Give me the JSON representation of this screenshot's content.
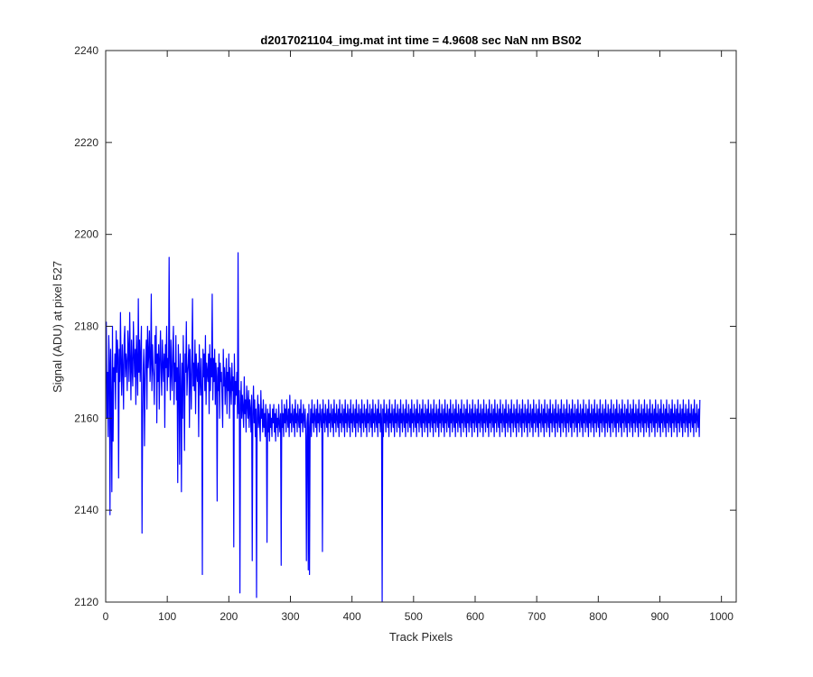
{
  "chart_data": {
    "type": "line",
    "title": "d2017021104_img.mat int time = 4.9608 sec  NaN nm BS02",
    "xlabel": "Track Pixels",
    "ylabel": "Signal (ADU) at pixel 527",
    "xlim": [
      0,
      1024
    ],
    "ylim": [
      2120,
      2240
    ],
    "xticks": [
      0,
      100,
      200,
      300,
      400,
      500,
      600,
      700,
      800,
      900,
      1000
    ],
    "yticks": [
      2120,
      2140,
      2160,
      2180,
      2200,
      2220,
      2240
    ],
    "grid": false,
    "legend": "none",
    "series": [
      {
        "color": "#0000ff",
        "x_start": 1,
        "x_step": 1,
        "values": [
          2181,
          2160,
          2170,
          2156,
          2178,
          2172,
          2139,
          2175,
          2164,
          2144,
          2180,
          2155,
          2171,
          2168,
          2174,
          2162,
          2179,
          2170,
          2177,
          2173,
          2147,
          2175,
          2168,
          2183,
          2172,
          2165,
          2176,
          2171,
          2162,
          2177,
          2180,
          2169,
          2174,
          2172,
          2166,
          2179,
          2175,
          2168,
          2183,
          2173,
          2164,
          2177,
          2171,
          2167,
          2181,
          2174,
          2169,
          2175,
          2163,
          2178,
          2172,
          2165,
          2186,
          2170,
          2177,
          2168,
          2174,
          2180,
          2135,
          2160,
          2171,
          2175,
          2154,
          2168,
          2173,
          2177,
          2162,
          2180,
          2171,
          2174,
          2179,
          2168,
          2172,
          2187,
          2166,
          2176,
          2171,
          2169,
          2163,
          2178,
          2172,
          2180,
          2159,
          2174,
          2168,
          2176,
          2162,
          2173,
          2179,
          2170,
          2165,
          2177,
          2172,
          2168,
          2174,
          2158,
          2176,
          2171,
          2180,
          2166,
          2173,
          2169,
          2195,
          2172,
          2164,
          2177,
          2170,
          2166,
          2175,
          2180,
          2163,
          2172,
          2168,
          2178,
          2164,
          2171,
          2146,
          2176,
          2169,
          2150,
          2174,
          2167,
          2144,
          2172,
          2160,
          2178,
          2168,
          2153,
          2174,
          2170,
          2181,
          2165,
          2170,
          2172,
          2176,
          2158,
          2175,
          2169,
          2162,
          2173,
          2186,
          2167,
          2172,
          2166,
          2177,
          2161,
          2174,
          2170,
          2168,
          2172,
          2156,
          2176,
          2169,
          2165,
          2173,
          2167,
          2126,
          2175,
          2169,
          2174,
          2166,
          2178,
          2163,
          2172,
          2170,
          2168,
          2174,
          2161,
          2176,
          2166,
          2173,
          2169,
          2187,
          2164,
          2173,
          2168,
          2175,
          2163,
          2172,
          2169,
          2142,
          2171,
          2166,
          2174,
          2160,
          2172,
          2168,
          2170,
          2164,
          2158,
          2175,
          2167,
          2171,
          2163,
          2168,
          2173,
          2161,
          2170,
          2166,
          2174,
          2160,
          2171,
          2167,
          2163,
          2172,
          2166,
          2169,
          2132,
          2174,
          2163,
          2168,
          2165,
          2170,
          2160,
          2196,
          2161,
          2166,
          2122,
          2163,
          2168,
          2160,
          2165,
          2162,
          2158,
          2169,
          2161,
          2164,
          2157,
          2167,
          2163,
          2160,
          2166,
          2158,
          2164,
          2162,
          2157,
          2165,
          2129,
          2161,
          2167,
          2159,
          2164,
          2156,
          2162,
          2121,
          2160,
          2165,
          2158,
          2163,
          2159,
          2155,
          2166,
          2160,
          2162,
          2157,
          2164,
          2158,
          2161,
          2156,
          2163,
          2159,
          2133,
          2162,
          2157,
          2161,
          2155,
          2163,
          2158,
          2160,
          2156,
          2162,
          2159,
          2163,
          2157,
          2161,
          2155,
          2162,
          2158,
          2160,
          2156,
          2163,
          2159,
          2157,
          2161,
          2128,
          2164,
          2158,
          2161,
          2156,
          2163,
          2159,
          2162,
          2157,
          2164,
          2160,
          2158,
          2162,
          2156,
          2165,
          2159,
          2161,
          2157,
          2163,
          2160,
          2158,
          2162,
          2156,
          2164,
          2159,
          2161,
          2157,
          2163,
          2160,
          2158,
          2162,
          2156,
          2164,
          2159,
          2161,
          2157,
          2163,
          2160,
          2158,
          2162,
          2156,
          2129,
          2159,
          2161,
          2127,
          2163,
          2126,
          2158,
          2162,
          2156,
          2164,
          2159,
          2161,
          2157,
          2163,
          2160,
          2158,
          2162,
          2156,
          2164,
          2159,
          2161,
          2157,
          2163,
          2160,
          2158,
          2162,
          2131,
          2164,
          2159,
          2161,
          2157,
          2163,
          2160,
          2158,
          2162,
          2156,
          2164,
          2159,
          2161,
          2157,
          2163,
          2160,
          2158,
          2162,
          2156,
          2164,
          2159,
          2161,
          2157,
          2163,
          2160,
          2158,
          2162,
          2156,
          2164,
          2159,
          2161,
          2157,
          2163,
          2160,
          2158,
          2162,
          2156,
          2164,
          2159,
          2161,
          2157,
          2163,
          2160,
          2158,
          2162,
          2156,
          2164,
          2159,
          2161,
          2157,
          2163,
          2160,
          2158,
          2162,
          2156,
          2164,
          2159,
          2161,
          2157,
          2163,
          2160,
          2158,
          2162,
          2156,
          2164,
          2159,
          2161,
          2157,
          2163,
          2160,
          2158,
          2162,
          2156,
          2164,
          2159,
          2161,
          2157,
          2163,
          2160,
          2158,
          2162,
          2156,
          2164,
          2159,
          2161,
          2157,
          2163,
          2160,
          2158,
          2162,
          2156,
          2164,
          2159,
          2161,
          2157,
          2163,
          2160,
          2120,
          2162,
          2156,
          2164,
          2159,
          2161,
          2157,
          2163,
          2160,
          2158,
          2162,
          2156,
          2164,
          2159,
          2161,
          2157,
          2163,
          2160,
          2158,
          2162,
          2156,
          2164,
          2159,
          2161,
          2157,
          2163,
          2160,
          2158,
          2162,
          2156,
          2164,
          2159,
          2161,
          2157,
          2163,
          2160,
          2158,
          2162,
          2156,
          2164,
          2159,
          2161,
          2157,
          2163,
          2160,
          2158,
          2162,
          2156,
          2164,
          2159,
          2161,
          2157,
          2163,
          2160,
          2158,
          2162,
          2156,
          2164,
          2159,
          2161,
          2157,
          2163,
          2160,
          2158,
          2162,
          2156,
          2164,
          2159,
          2161,
          2157,
          2163,
          2160,
          2158,
          2162,
          2156,
          2164,
          2159,
          2161,
          2157,
          2163,
          2160,
          2158,
          2162,
          2156,
          2164,
          2159,
          2161,
          2157,
          2163,
          2160,
          2158,
          2162,
          2156,
          2164,
          2159,
          2161,
          2157,
          2163,
          2160,
          2158,
          2162,
          2156,
          2164,
          2159,
          2161,
          2157,
          2163,
          2160,
          2158,
          2162,
          2156,
          2164,
          2159,
          2161,
          2157,
          2163,
          2160,
          2158,
          2162,
          2156,
          2164,
          2159,
          2161,
          2157,
          2163,
          2160,
          2158,
          2162,
          2156,
          2164,
          2159,
          2161,
          2157,
          2163,
          2160,
          2158,
          2162,
          2156,
          2164,
          2159,
          2161,
          2157,
          2163,
          2160,
          2158,
          2162,
          2156,
          2164,
          2159,
          2161,
          2157,
          2163,
          2160,
          2158,
          2162,
          2156,
          2164,
          2159,
          2161,
          2157,
          2163,
          2160,
          2158,
          2162,
          2156,
          2164,
          2159,
          2161,
          2157,
          2163,
          2160,
          2158,
          2162,
          2156,
          2164,
          2159,
          2161,
          2157,
          2163,
          2160,
          2158,
          2162,
          2156,
          2164,
          2159,
          2161,
          2157,
          2163,
          2160,
          2158,
          2162,
          2156,
          2164,
          2159,
          2161,
          2157,
          2163,
          2160,
          2158,
          2162,
          2156,
          2164,
          2159,
          2161,
          2157,
          2163,
          2160,
          2158,
          2162,
          2156,
          2164,
          2159,
          2161,
          2157,
          2163,
          2160,
          2158,
          2162,
          2156,
          2164,
          2159,
          2161,
          2157,
          2163,
          2160,
          2158,
          2162,
          2156,
          2164,
          2159,
          2161,
          2157,
          2163,
          2160,
          2158,
          2162,
          2156,
          2164,
          2159,
          2161,
          2157,
          2163,
          2160,
          2158,
          2162,
          2156,
          2164,
          2159,
          2161,
          2157,
          2163,
          2160,
          2158,
          2162,
          2156,
          2164,
          2159,
          2161,
          2157,
          2163,
          2160,
          2158,
          2162,
          2156,
          2164,
          2159,
          2161,
          2157,
          2163,
          2160,
          2158,
          2162,
          2156,
          2164,
          2159,
          2161,
          2157,
          2163,
          2160,
          2158,
          2162,
          2156,
          2164,
          2159,
          2161,
          2157,
          2163,
          2160,
          2158,
          2162,
          2156,
          2164,
          2159,
          2161,
          2157,
          2163,
          2160,
          2158,
          2162,
          2156,
          2164,
          2159,
          2161,
          2157,
          2163,
          2160,
          2158,
          2162,
          2156,
          2164,
          2159,
          2161,
          2157,
          2163,
          2160,
          2158,
          2162,
          2156,
          2164,
          2159,
          2161,
          2157,
          2163,
          2160,
          2158,
          2162,
          2156,
          2164,
          2159,
          2161,
          2157,
          2163,
          2160,
          2158,
          2162,
          2156,
          2164,
          2159,
          2161,
          2157,
          2163,
          2160,
          2158,
          2162,
          2156,
          2164,
          2159,
          2161,
          2157,
          2163,
          2160,
          2158,
          2162,
          2156,
          2164,
          2159,
          2161,
          2157,
          2163,
          2160,
          2158,
          2162,
          2156,
          2164,
          2159,
          2161,
          2157,
          2163,
          2160,
          2158,
          2162,
          2156,
          2164,
          2159,
          2161,
          2157,
          2163,
          2160,
          2158,
          2162,
          2156,
          2164,
          2159,
          2161,
          2157,
          2163,
          2160,
          2158,
          2162,
          2156,
          2164,
          2159,
          2161,
          2157,
          2163,
          2160,
          2158,
          2162,
          2156,
          2164,
          2159,
          2161,
          2157,
          2163,
          2160,
          2158,
          2162,
          2156,
          2164,
          2159,
          2161,
          2157,
          2163,
          2160,
          2158,
          2162,
          2156,
          2164,
          2159,
          2161,
          2157,
          2163,
          2160,
          2158,
          2162,
          2156,
          2164,
          2159,
          2161,
          2157,
          2163,
          2160,
          2158,
          2162,
          2156,
          2164,
          2159,
          2161,
          2157,
          2163,
          2160,
          2158,
          2162,
          2156,
          2164,
          2159,
          2161,
          2157,
          2163,
          2160,
          2158,
          2162,
          2156,
          2164,
          2159,
          2161,
          2157,
          2163,
          2160,
          2158,
          2162,
          2156,
          2164,
          2159,
          2161,
          2157,
          2163,
          2160,
          2158,
          2162,
          2156,
          2164,
          2159,
          2161,
          2157,
          2163,
          2160,
          2158,
          2162,
          2156,
          2164,
          2159,
          2161,
          2157,
          2163,
          2160,
          2158,
          2162,
          2156,
          2164,
          2159,
          2161,
          2157,
          2163,
          2160,
          2158,
          2162,
          2156,
          2164,
          2159,
          2161,
          2157,
          2163,
          2160,
          2158,
          2162,
          2156,
          2164,
          2159,
          2161,
          2157,
          2163,
          2160,
          2158,
          2162,
          2156,
          2164
        ]
      }
    ]
  }
}
